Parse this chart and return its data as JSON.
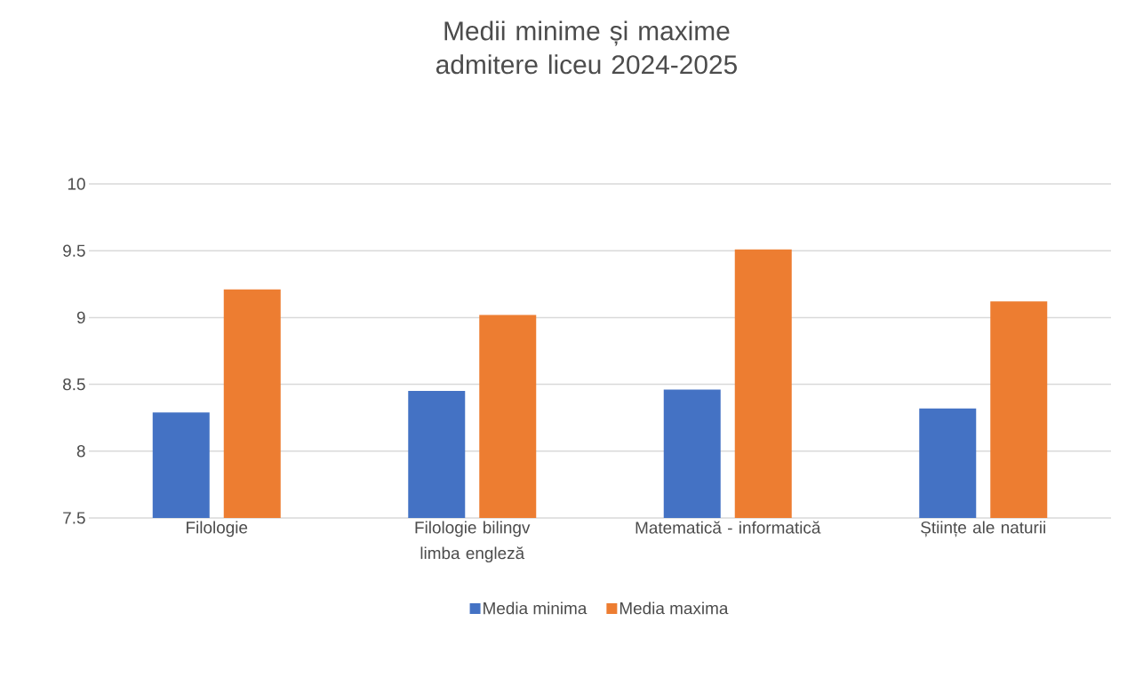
{
  "chart_data": {
    "type": "bar",
    "title": "Medii minime și maxime admitere liceu 2024-2025",
    "categories": [
      "Filologie",
      "Filologie bilingv limba engleză",
      "Matematică - informatică",
      "Științe ale naturii"
    ],
    "series": [
      {
        "name": "Media minima",
        "color": "#4472c4",
        "values": [
          8.29,
          8.45,
          8.46,
          8.32
        ]
      },
      {
        "name": "Media maxima",
        "color": "#ed7d31",
        "values": [
          9.21,
          9.02,
          9.51,
          9.12
        ]
      }
    ],
    "ylim": [
      7.5,
      10
    ],
    "yticks": [
      7.5,
      8,
      8.5,
      9,
      9.5,
      10
    ],
    "grid": "y",
    "legend": "bottom"
  }
}
